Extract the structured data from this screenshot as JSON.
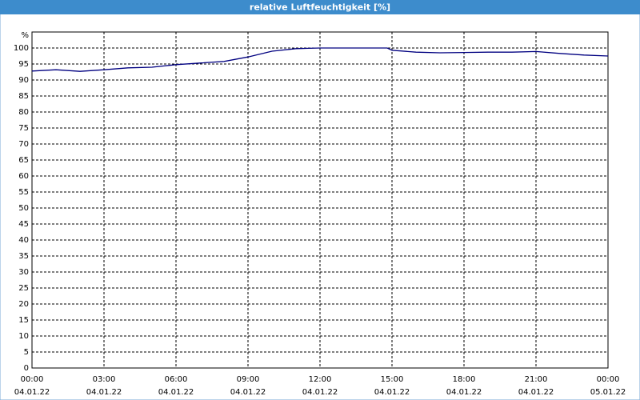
{
  "chart_data": {
    "type": "line",
    "title": "relative Luftfeuchtigkeit [%]",
    "y_label": "%",
    "x": [
      0,
      1,
      2,
      3,
      4,
      5,
      6,
      7,
      8,
      9,
      10,
      11,
      12,
      13,
      14,
      14.8,
      15,
      16,
      17,
      18,
      19,
      20,
      21,
      22,
      23,
      24
    ],
    "series": [
      {
        "name": "relative Luftfeuchtigkeit",
        "color": "#000080",
        "values": [
          92.8,
          93.2,
          92.7,
          93.2,
          93.8,
          94.0,
          94.8,
          95.3,
          95.8,
          97.2,
          99.0,
          99.8,
          100,
          100,
          100,
          100,
          99.3,
          98.7,
          98.5,
          98.6,
          98.7,
          98.7,
          98.9,
          98.3,
          97.8,
          97.5
        ]
      }
    ],
    "xlim": [
      0,
      24
    ],
    "xticks": [
      {
        "value": 0,
        "label": "00:00"
      },
      {
        "value": 3,
        "label": "03:00"
      },
      {
        "value": 6,
        "label": "06:00"
      },
      {
        "value": 9,
        "label": "09:00"
      },
      {
        "value": 12,
        "label": "12:00"
      },
      {
        "value": 15,
        "label": "15:00"
      },
      {
        "value": 18,
        "label": "18:00"
      },
      {
        "value": 21,
        "label": "21:00"
      },
      {
        "value": 24,
        "label": "00:00"
      }
    ],
    "xtick_dates": [
      "04.01.22",
      "04.01.22",
      "04.01.22",
      "04.01.22",
      "04.01.22",
      "04.01.22",
      "04.01.22",
      "04.01.22",
      "05.01.22"
    ],
    "ylim": [
      0,
      105
    ],
    "yticks": [
      0,
      5,
      10,
      15,
      20,
      25,
      30,
      35,
      40,
      45,
      50,
      55,
      60,
      65,
      70,
      75,
      80,
      85,
      90,
      95,
      100
    ],
    "grid": true
  }
}
